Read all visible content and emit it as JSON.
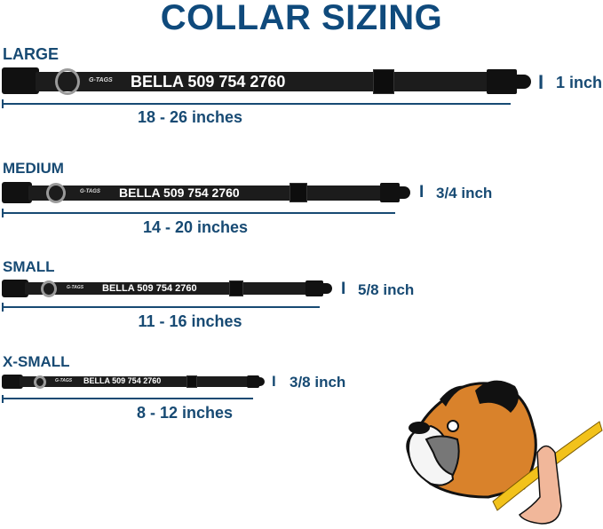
{
  "title": "COLLAR SIZING",
  "sizes": [
    {
      "label": "LARGE",
      "range": "18 - 26 inches",
      "width": "1 inch",
      "name_text": "BELLA 509 754 2760",
      "logo": "G-TAGS"
    },
    {
      "label": "MEDIUM",
      "range": "14 - 20 inches",
      "width": "3/4 inch",
      "name_text": "BELLA 509 754 2760",
      "logo": "G-TAGS"
    },
    {
      "label": "SMALL",
      "range": "11 - 16 inches",
      "width": "5/8 inch",
      "name_text": "BELLA 509 754 2760",
      "logo": "G-TAGS"
    },
    {
      "label": "X-SMALL",
      "range": "8 - 12 inches",
      "width": "3/8 inch",
      "name_text": "BELLA 509 754 2760",
      "logo": "G-TAGS"
    }
  ],
  "colors": {
    "accent": "#174a73",
    "collar": "#1c1c1c",
    "tape": "#f2c21b",
    "dog_fur": "#d9822b"
  }
}
